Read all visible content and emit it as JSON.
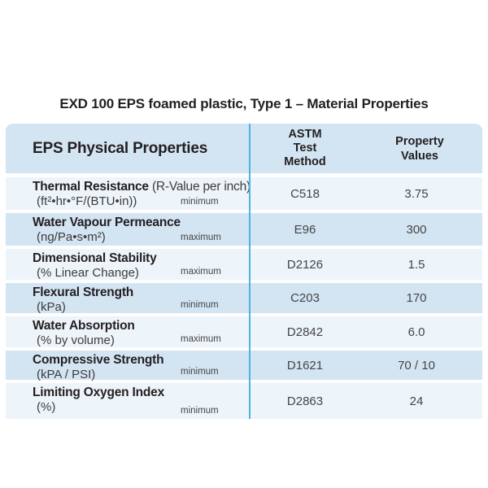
{
  "title": "EXD 100 EPS foamed plastic, Type 1 – Material Properties",
  "table": {
    "header": {
      "properties": "EPS Physical Properties",
      "astm": "ASTM Test Method",
      "values": "Property Values"
    },
    "rows": [
      {
        "name": "Thermal Resistance",
        "suffix": " (R-Value per inch)",
        "detail": "(ft²•hr•°F/(BTU•in))",
        "limit": "minimum",
        "method": "C518",
        "value": "3.75"
      },
      {
        "name": "Water Vapour Permeance",
        "detail": "(ng/Pa•s•m²)",
        "limit": "maximum",
        "method": "E96",
        "value": "300"
      },
      {
        "name": "Dimensional Stability",
        "detail": "(% Linear Change)",
        "limit": "maximum",
        "method": "D2126",
        "value": "1.5"
      },
      {
        "name": "Flexural Strength",
        "detail": "(kPa)",
        "limit": "minimum",
        "method": "C203",
        "value": "170"
      },
      {
        "name": "Water Absorption",
        "detail": "(% by volume)",
        "limit": "maximum",
        "method": "D2842",
        "value": "6.0"
      },
      {
        "name": "Compressive Strength",
        "detail": "(kPA / PSI)",
        "limit": "minimum",
        "method": "D1621",
        "value": "70 / 10"
      },
      {
        "name": "Limiting Oxygen Index",
        "detail": "(%)",
        "limit": "minimum",
        "method": "D2863",
        "value": "24"
      }
    ],
    "colors": {
      "row_blue": "#d3e4f3",
      "row_light": "#edf4fa",
      "divider": "#4db3e3",
      "text_dark": "#231f20"
    }
  }
}
